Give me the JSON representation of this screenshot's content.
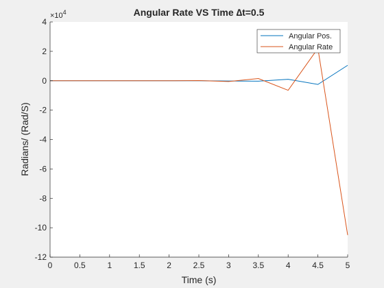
{
  "chart_data": {
    "type": "line",
    "title": "Angular Rate VS Time ∆t=0.5",
    "xlabel": "Time (s)",
    "ylabel": "Radians/ (Rad/S)",
    "exponent_label": "×10",
    "exponent_power": "4",
    "xlim": [
      0,
      5
    ],
    "ylim": [
      -12,
      4
    ],
    "xticks": [
      0,
      0.5,
      1,
      1.5,
      2,
      2.5,
      3,
      3.5,
      4,
      4.5,
      5
    ],
    "xtick_labels": [
      "0",
      "0.5",
      "1",
      "1.5",
      "2",
      "2.5",
      "3",
      "3.5",
      "4",
      "4.5",
      "5"
    ],
    "yticks": [
      -12,
      -10,
      -8,
      -6,
      -4,
      -2,
      0,
      2,
      4
    ],
    "ytick_labels": [
      "-12",
      "-10",
      "-8",
      "-6",
      "-4",
      "-2",
      "0",
      "2",
      "4"
    ],
    "grid": false,
    "legend_position": "top-right",
    "x": [
      0,
      0.5,
      1,
      1.5,
      2,
      2.5,
      3,
      3.5,
      4,
      4.5,
      5
    ],
    "series": [
      {
        "name": "Angular Pos.",
        "color": "#0072bd",
        "values": [
          0,
          0,
          0,
          0,
          0,
          0,
          -0.02,
          -0.03,
          0.1,
          -0.25,
          1.05
        ]
      },
      {
        "name": "Angular Rate",
        "color": "#d95319",
        "values": [
          0,
          0,
          0,
          0,
          0,
          0.01,
          -0.05,
          0.15,
          -0.65,
          2.2,
          -10.5
        ]
      }
    ]
  }
}
